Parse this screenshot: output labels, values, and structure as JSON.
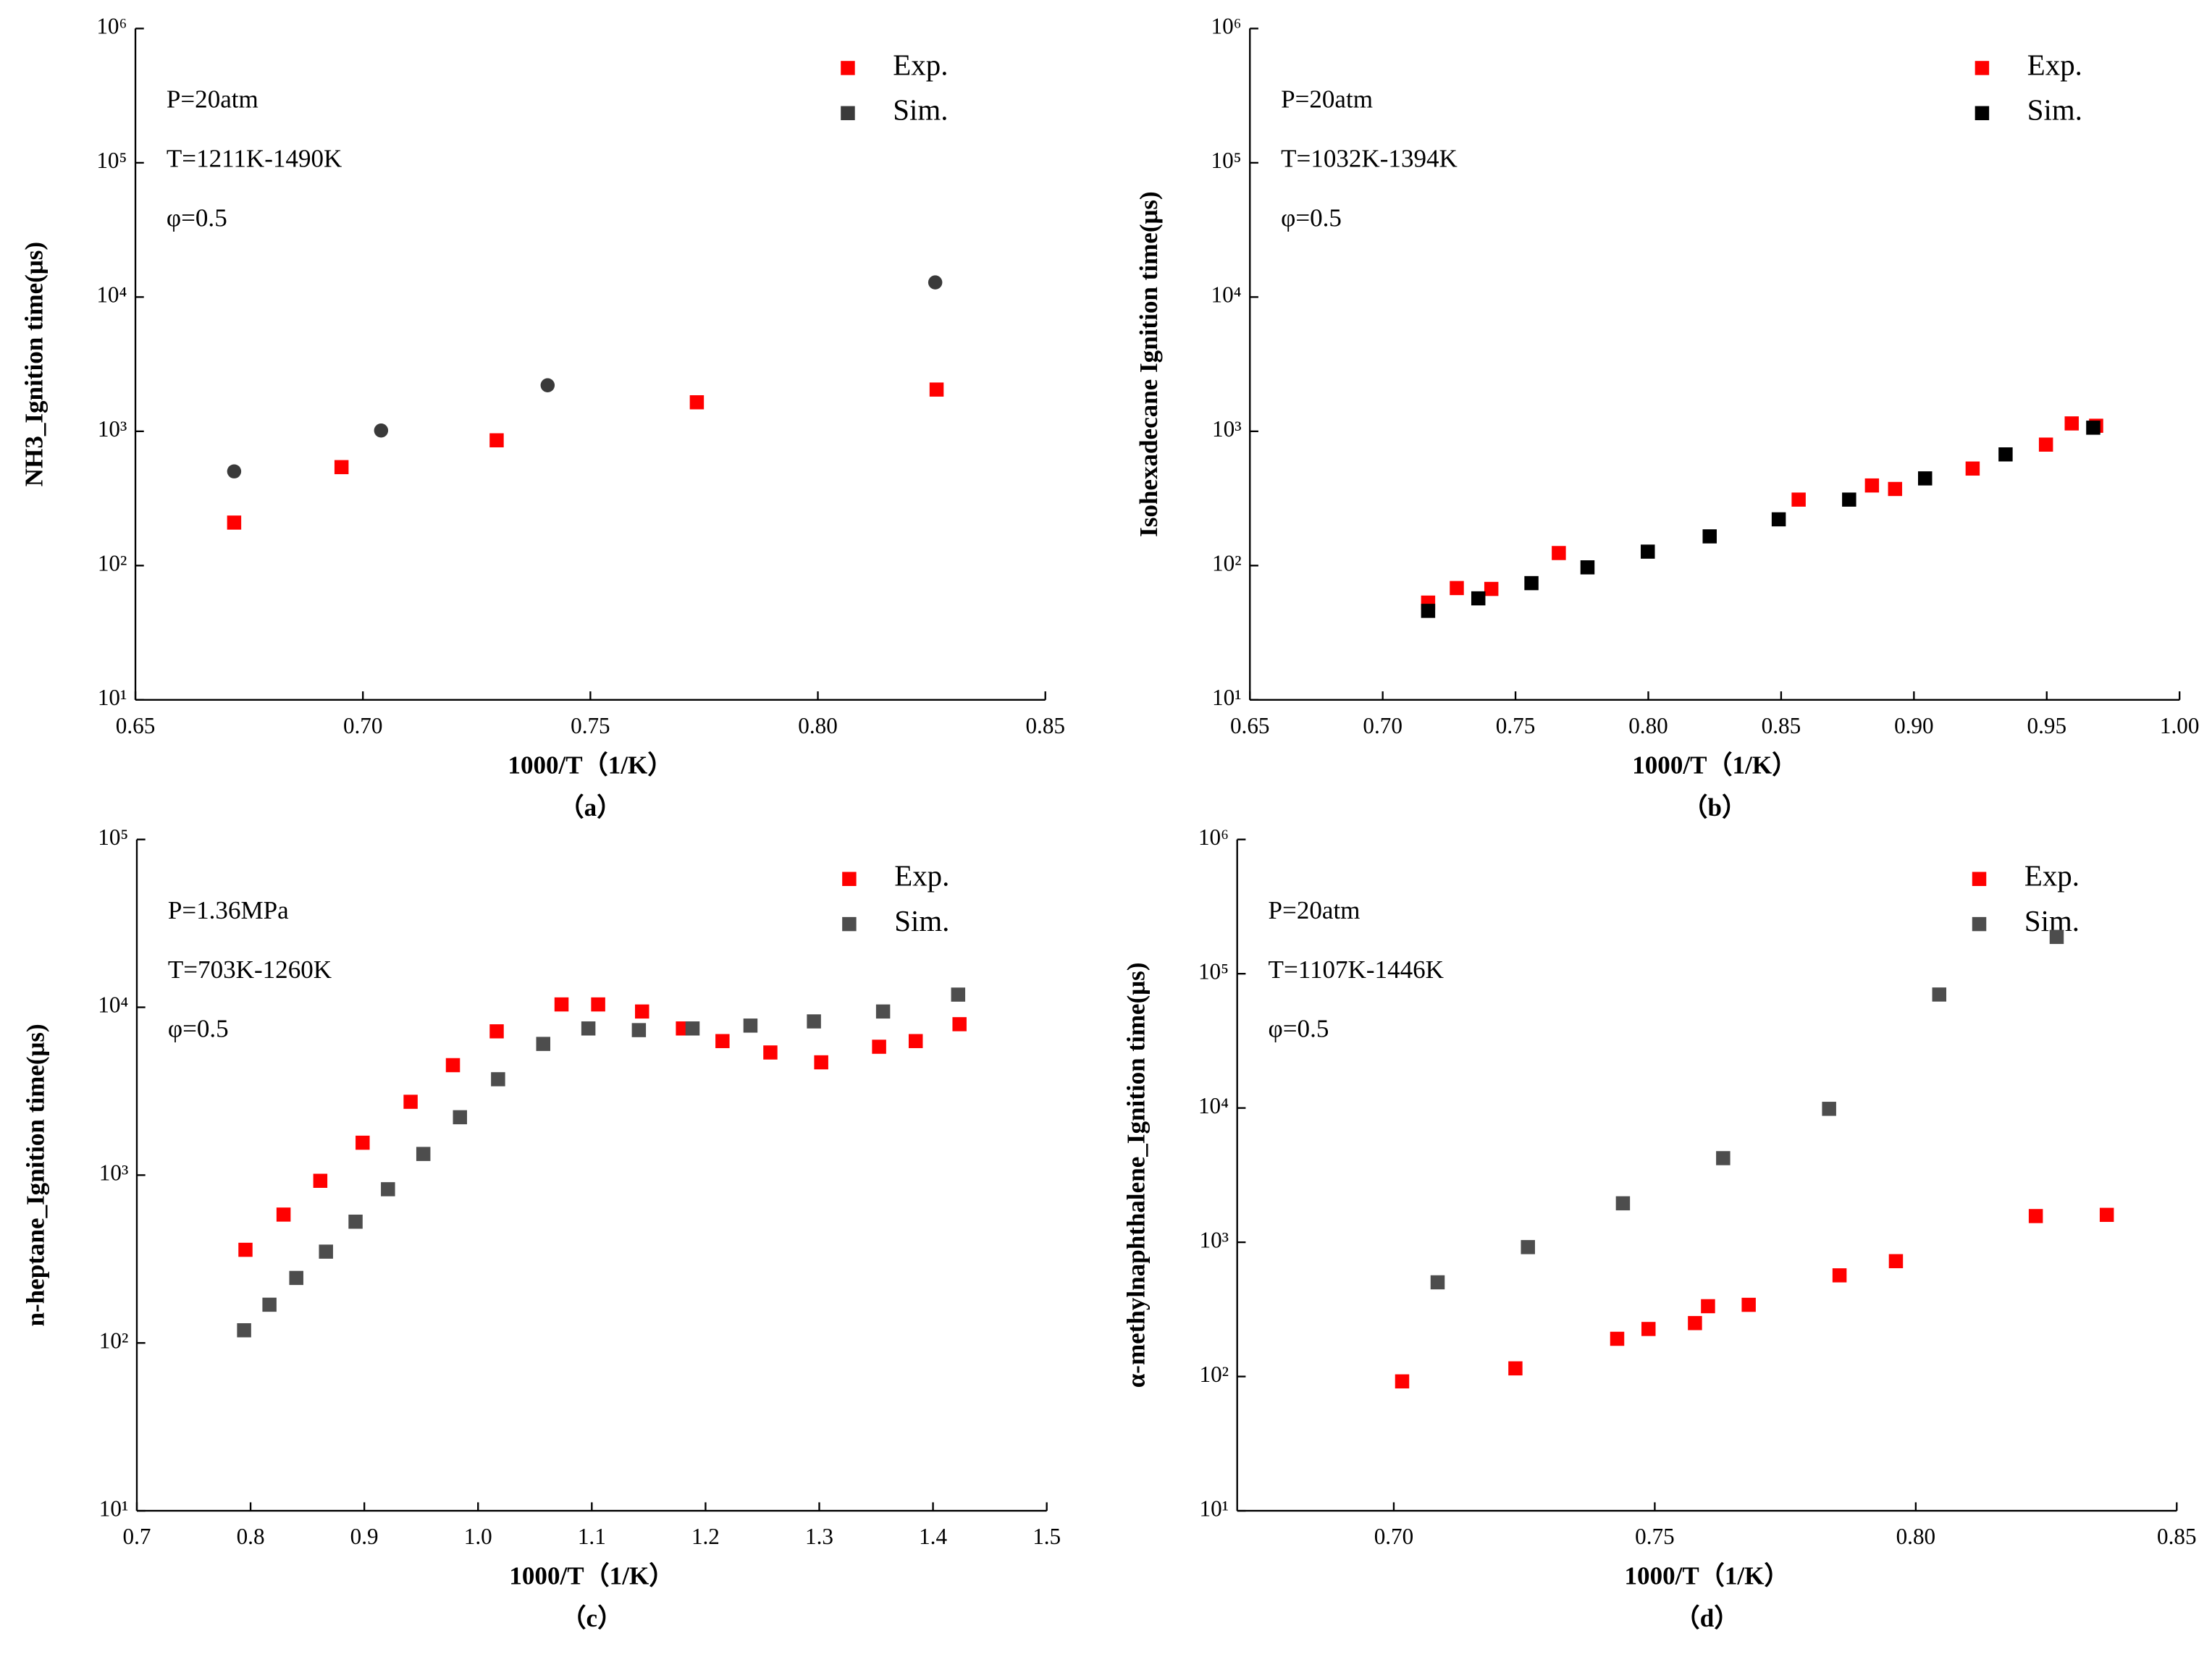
{
  "chart_data": [
    {
      "type": "scatter",
      "caption": "（a）",
      "xlabel": "1000/T（1/K）",
      "ylabel": "NH3_Ignition time(μs)",
      "annotations": [
        "P=20atm",
        "T=1211K-1490K",
        "φ=0.5"
      ],
      "xlim": [
        0.65,
        0.85
      ],
      "xticks": [
        0.65,
        {
          "value": 0.7,
          "label": "0.70"
        },
        0.75,
        {
          "value": 0.8,
          "label": "0.80"
        },
        0.85
      ],
      "ylim": [
        10,
        1000000
      ],
      "yscale": "log",
      "yticks": [
        {
          "value": 10,
          "label": "10¹"
        },
        {
          "value": 100,
          "label": "10²"
        },
        {
          "value": 1000,
          "label": "10³"
        },
        {
          "value": 10000,
          "label": "10⁴"
        },
        {
          "value": 100000,
          "label": "10⁵"
        },
        {
          "value": 1000000,
          "label": "10⁶"
        }
      ],
      "legend": "upper right",
      "series": [
        {
          "name": "Exp.",
          "color": "#ff0000",
          "marker": "square",
          "x": [
            0.6717,
            0.6953,
            0.7294,
            0.7734,
            0.8261
          ],
          "values": [
            209,
            541,
            857,
            1645,
            2046
          ]
        },
        {
          "name": "Sim.",
          "color": "#3a3a3a",
          "marker": "circle",
          "x": [
            0.6717,
            0.704,
            0.7406,
            0.8258
          ],
          "values": [
            503,
            1014,
            2203,
            12850
          ]
        }
      ]
    },
    {
      "type": "scatter",
      "caption": "（b）",
      "xlabel": "1000/T（1/K）",
      "ylabel": "Isohexadecane Ignition time(μs)",
      "annotations": [
        "P=20atm",
        "T=1032K-1394K",
        "φ=0.5"
      ],
      "xlim": [
        0.65,
        1.0
      ],
      "xticks": [
        0.65,
        {
          "value": 0.7,
          "label": "0.70"
        },
        0.75,
        {
          "value": 0.8,
          "label": "0.80"
        },
        0.85,
        {
          "value": 0.9,
          "label": "0.90"
        },
        0.95,
        {
          "value": 1.0,
          "label": "1.00"
        }
      ],
      "ylim": [
        10,
        1000000
      ],
      "yscale": "log",
      "yticks": [
        {
          "value": 10,
          "label": "10¹"
        },
        {
          "value": 100,
          "label": "10²"
        },
        {
          "value": 1000,
          "label": "10³"
        },
        {
          "value": 10000,
          "label": "10⁴"
        },
        {
          "value": 100000,
          "label": "10⁵"
        },
        {
          "value": 1000000,
          "label": "10⁶"
        }
      ],
      "legend": "upper right",
      "series": [
        {
          "name": "Exp.",
          "color": "#ff0000",
          "marker": "square",
          "x": [
            0.7171,
            0.7279,
            0.7409,
            0.7663,
            0.8566,
            0.8842,
            0.8929,
            0.9221,
            0.9497,
            0.9594,
            0.9686
          ],
          "values": [
            53,
            68,
            67,
            124,
            310,
            395,
            372,
            528,
            796,
            1145,
            1100
          ]
        },
        {
          "name": "Sim.",
          "color": "#000000",
          "marker": "square",
          "x": [
            0.7171,
            0.736,
            0.756,
            0.7771,
            0.7998,
            0.8231,
            0.8491,
            0.8756,
            0.9042,
            0.9345,
            0.9675
          ],
          "values": [
            46,
            57,
            74,
            97,
            127,
            165,
            221,
            310,
            446,
            673,
            1064
          ]
        }
      ]
    },
    {
      "type": "scatter",
      "caption": "（c）",
      "xlabel": "1000/T（1/K）",
      "ylabel": "n-heptane_Ignition time(μs)",
      "annotations": [
        "P=1.36MPa",
        "T=703K-1260K",
        "φ=0.5"
      ],
      "xlim": [
        0.7,
        1.5
      ],
      "xticks": [
        0.7,
        0.8,
        0.9,
        {
          "value": 1.0,
          "label": "1.0"
        },
        1.1,
        1.2,
        1.3,
        1.4,
        1.5
      ],
      "ylim": [
        10,
        100000
      ],
      "yscale": "log",
      "yticks": [
        {
          "value": 10,
          "label": "10¹"
        },
        {
          "value": 100,
          "label": "10²"
        },
        {
          "value": 1000,
          "label": "10³"
        },
        {
          "value": 10000,
          "label": "10⁴"
        },
        {
          "value": 100000,
          "label": "10⁵"
        }
      ],
      "legend": "upper right",
      "series": [
        {
          "name": "Exp.",
          "color": "#ff0000",
          "marker": "square",
          "x": [
            0.7955,
            0.829,
            0.8613,
            0.8985,
            0.9407,
            0.9779,
            1.0164,
            1.0734,
            1.1056,
            1.1442,
            1.1801,
            1.2149,
            1.257,
            1.3017,
            1.3526,
            1.3848,
            1.4233
          ],
          "values": [
            359,
            582,
            925,
            1560,
            2735,
            4520,
            7190,
            10400,
            10400,
            9440,
            7480,
            6290,
            5380,
            4700,
            5820,
            6290,
            7930
          ]
        },
        {
          "name": "Sim.",
          "color": "#4d4d4d",
          "marker": "square",
          "x": [
            0.7943,
            0.8166,
            0.8402,
            0.8663,
            0.8923,
            0.9208,
            0.9519,
            0.9841,
            1.0176,
            1.0573,
            1.097,
            1.1414,
            1.1886,
            1.2395,
            1.2953,
            1.3561,
            1.4221
          ],
          "values": [
            119,
            169,
            244,
            350,
            528,
            824,
            1337,
            2213,
            3727,
            6050,
            7480,
            7310,
            7480,
            7780,
            8240,
            9440,
            11900
          ]
        }
      ]
    },
    {
      "type": "scatter",
      "caption": "（d）",
      "xlabel": "1000/T（1/K）",
      "ylabel": "α-methylnaphthalene_Ignition time(μs)",
      "annotations": [
        "P=20atm",
        "T=1107K-1446K",
        "φ=0.5"
      ],
      "xlim": [
        0.67,
        0.85
      ],
      "xticks": [
        {
          "value": 0.7,
          "label": "0.70"
        },
        0.75,
        {
          "value": 0.8,
          "label": "0.80"
        },
        0.85
      ],
      "ylim": [
        10,
        1000000
      ],
      "yscale": "log",
      "yticks": [
        {
          "value": 10,
          "label": "10¹"
        },
        {
          "value": 100,
          "label": "10²"
        },
        {
          "value": 1000,
          "label": "10³"
        },
        {
          "value": 10000,
          "label": "10⁴"
        },
        {
          "value": 100000,
          "label": "10⁵"
        },
        {
          "value": 1000000,
          "label": "10⁶"
        }
      ],
      "legend": "upper right",
      "series": [
        {
          "name": "Exp.",
          "color": "#ff0000",
          "marker": "square",
          "x": [
            0.7016,
            0.7233,
            0.7428,
            0.7488,
            0.7577,
            0.7602,
            0.768,
            0.7854,
            0.7962,
            0.823,
            0.8366
          ],
          "values": [
            92,
            115,
            191,
            226,
            250,
            334,
            342,
            567,
            723,
            1567,
            1600
          ]
        },
        {
          "name": "Sim.",
          "color": "#4d4d4d",
          "marker": "square",
          "x": [
            0.7084,
            0.7257,
            0.7439,
            0.7631,
            0.7834,
            0.8045,
            0.827
          ],
          "values": [
            503,
            920,
            1950,
            4230,
            9860,
            70000,
            188000
          ]
        }
      ]
    }
  ]
}
